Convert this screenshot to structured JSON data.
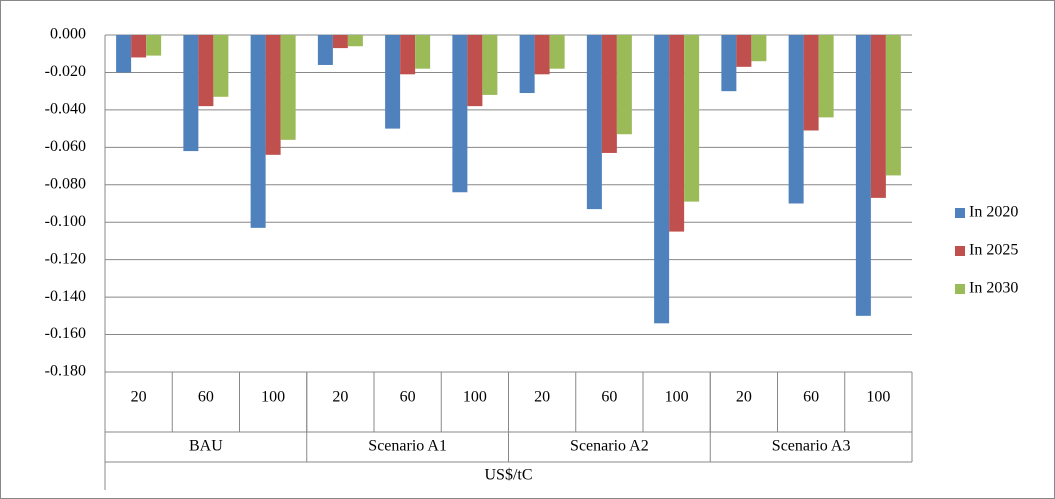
{
  "chart_data": {
    "type": "bar",
    "categories": [
      "20",
      "60",
      "100",
      "20",
      "60",
      "100",
      "20",
      "60",
      "100",
      "20",
      "60",
      "100"
    ],
    "category_groups": [
      "BAU",
      "Scenario A1",
      "Scenario A2",
      "Scenario A3"
    ],
    "x_label": "US$/tC",
    "series": [
      {
        "name": "In 2020",
        "color": "#4f81bd",
        "values": [
          -0.02,
          -0.062,
          -0.103,
          -0.016,
          -0.05,
          -0.084,
          -0.031,
          -0.093,
          -0.154,
          -0.03,
          -0.09,
          -0.15
        ]
      },
      {
        "name": "In 2025",
        "color": "#c0504d",
        "values": [
          -0.012,
          -0.038,
          -0.064,
          -0.007,
          -0.021,
          -0.038,
          -0.021,
          -0.063,
          -0.105,
          -0.017,
          -0.051,
          -0.087
        ]
      },
      {
        "name": "In 2030",
        "color": "#9bbb59",
        "values": [
          -0.011,
          -0.033,
          -0.056,
          -0.006,
          -0.018,
          -0.032,
          -0.018,
          -0.053,
          -0.089,
          -0.014,
          -0.044,
          -0.075
        ]
      }
    ],
    "ylim": [
      -0.18,
      0
    ],
    "yticks": [
      {
        "value": 0,
        "label": "0.000"
      },
      {
        "value": -0.02,
        "label": "-0.020"
      },
      {
        "value": -0.04,
        "label": "-0.040"
      },
      {
        "value": -0.06,
        "label": "-0.060"
      },
      {
        "value": -0.08,
        "label": "-0.080"
      },
      {
        "value": -0.1,
        "label": "-0.100"
      },
      {
        "value": -0.12,
        "label": "-0.120"
      },
      {
        "value": -0.14,
        "label": "-0.140"
      },
      {
        "value": -0.16,
        "label": "-0.160"
      },
      {
        "value": -0.18,
        "label": "-0.180"
      }
    ],
    "grid": true,
    "legend": "right"
  }
}
